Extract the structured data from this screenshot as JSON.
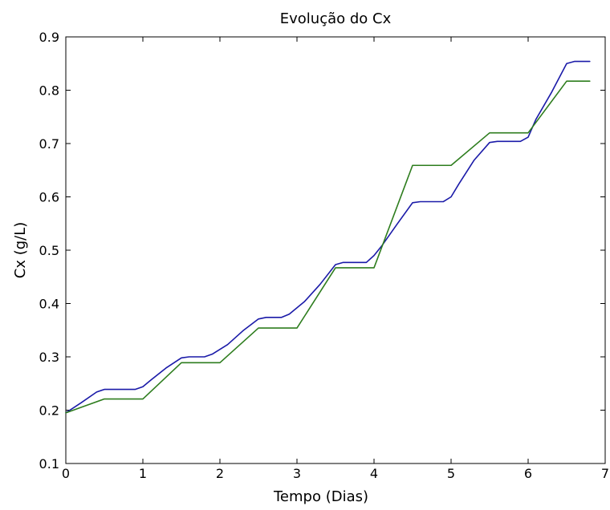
{
  "chart_data": {
    "type": "line",
    "title": "Evolução do Cx",
    "xlabel": "Tempo (Dias)",
    "ylabel": "Cx (g/L)",
    "xlim": [
      0,
      7
    ],
    "ylim": [
      0.1,
      0.9
    ],
    "xticks": [
      "0",
      "1",
      "2",
      "3",
      "4",
      "5",
      "6",
      "7"
    ],
    "yticks": [
      "0.1",
      "0.2",
      "0.3",
      "0.4",
      "0.5",
      "0.6",
      "0.7",
      "0.8",
      "0.9"
    ],
    "grid": false,
    "legend": "none",
    "series": [
      {
        "color": "#1a1aa8",
        "x": [
          0,
          0.2,
          0.4,
          0.5,
          0.9,
          1.0,
          1.1,
          1.3,
          1.5,
          1.6,
          1.8,
          1.9,
          2.1,
          2.3,
          2.5,
          2.6,
          2.8,
          2.9,
          3.1,
          3.3,
          3.5,
          3.6,
          3.9,
          4.0,
          4.1,
          4.3,
          4.5,
          4.6,
          4.9,
          5.0,
          5.1,
          5.3,
          5.5,
          5.6,
          5.9,
          6.0,
          6.1,
          6.3,
          6.5,
          6.6,
          6.8
        ],
        "y": [
          0.195,
          0.214,
          0.234,
          0.239,
          0.239,
          0.244,
          0.256,
          0.279,
          0.298,
          0.3,
          0.3,
          0.305,
          0.323,
          0.349,
          0.371,
          0.374,
          0.374,
          0.38,
          0.404,
          0.436,
          0.473,
          0.477,
          0.477,
          0.49,
          0.508,
          0.549,
          0.589,
          0.591,
          0.591,
          0.6,
          0.624,
          0.669,
          0.702,
          0.704,
          0.704,
          0.712,
          0.745,
          0.795,
          0.85,
          0.854,
          0.854
        ]
      },
      {
        "color": "#2e7d1e",
        "x": [
          0,
          0.5,
          1.0,
          1.5,
          2.0,
          2.5,
          3.0,
          3.5,
          4.0,
          4.5,
          5.0,
          5.5,
          6.0,
          6.5,
          6.8
        ],
        "y": [
          0.195,
          0.221,
          0.221,
          0.289,
          0.289,
          0.354,
          0.354,
          0.467,
          0.467,
          0.659,
          0.659,
          0.72,
          0.72,
          0.817,
          0.817
        ]
      }
    ]
  }
}
